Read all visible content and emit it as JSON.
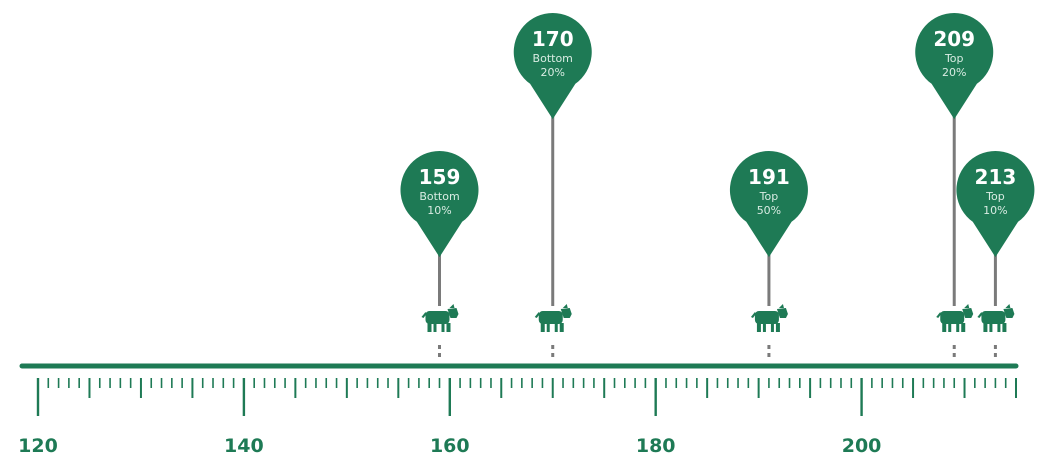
{
  "colors": {
    "accent": "#1e7a55",
    "stem": "#7a7a7a",
    "background": "#ffffff"
  },
  "chart_data": {
    "type": "scatter",
    "title": "",
    "xlabel": "",
    "ylabel": "",
    "xlim": [
      120,
      215
    ],
    "x_tick_labels": [
      "120",
      "140",
      "160",
      "180",
      "200"
    ],
    "x_ticks": [
      120,
      140,
      160,
      180,
      200
    ],
    "minor_tick_step": 1,
    "medium_tick_step": 5,
    "marker_icon": "cow-icon",
    "points": [
      {
        "value": 159,
        "label": "159",
        "position": "Bottom",
        "percent": "10%",
        "height": 1
      },
      {
        "value": 170,
        "label": "170",
        "position": "Bottom",
        "percent": "20%",
        "height": 2
      },
      {
        "value": 191,
        "label": "191",
        "position": "Top",
        "percent": "50%",
        "height": 1
      },
      {
        "value": 209,
        "label": "209",
        "position": "Top",
        "percent": "20%",
        "height": 2
      },
      {
        "value": 213,
        "label": "213",
        "position": "Top",
        "percent": "10%",
        "height": 1
      }
    ]
  }
}
